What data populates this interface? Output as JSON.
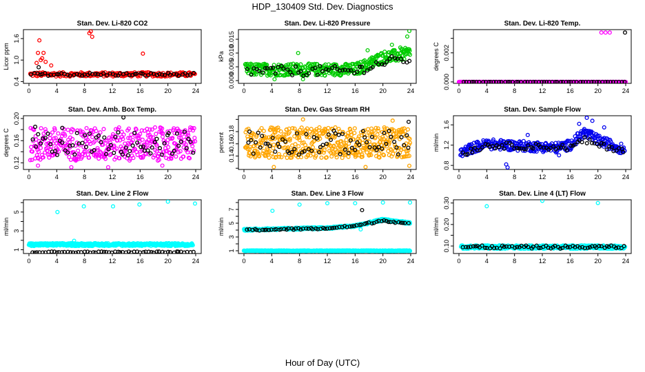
{
  "figure": {
    "title": "HDP_130409  Std. Dev. Diagnostics",
    "xlabel": "Hour of Day (UTC)"
  },
  "chart_data": [
    {
      "type": "scatter",
      "title": "Stan. Dev. Li-820 CO2",
      "xlabel": "",
      "ylabel": "Licor ppm",
      "xlim": [
        0,
        24
      ],
      "ylim": [
        0.35,
        1.85
      ],
      "xticks": [
        "0",
        "4",
        "8",
        "12",
        "16",
        "20",
        "24"
      ],
      "yticks": [
        0.4,
        1.0,
        1.6
      ],
      "yticks_labels": [
        "0.4",
        "1.0",
        "1.6"
      ],
      "extra_ytick_labels": [
        "0.8"
      ],
      "series": [
        {
          "color": "#ff0000",
          "base": 0.6,
          "spread": 0.06,
          "from": 0.2,
          "to": 23.9,
          "step": 0.1,
          "outliers": [
            [
              1.5,
              1.55
            ],
            [
              1.3,
              1.2
            ],
            [
              1.9,
              1.05
            ],
            [
              2.1,
              1.2
            ],
            [
              1.7,
              1.0
            ],
            [
              2.4,
              0.95
            ],
            [
              8.7,
              1.75
            ],
            [
              8.9,
              1.8
            ],
            [
              9.1,
              1.65
            ],
            [
              16.4,
              1.18
            ],
            [
              1.1,
              0.92
            ],
            [
              3.2,
              0.85
            ]
          ]
        },
        {
          "color": "#000000",
          "base": 0.6,
          "spread": 0.04,
          "from": 0.4,
          "to": 23.8,
          "step": 0.4,
          "outliers": [
            [
              1.4,
              0.8
            ]
          ]
        }
      ]
    },
    {
      "type": "scatter",
      "title": "Stan. Dev. Li-820 Pressure",
      "xlabel": "",
      "ylabel": "kPa",
      "xlim": [
        0,
        24
      ],
      "ylim": [
        -0.001,
        0.0185
      ],
      "xticks": [
        "0",
        "4",
        "8",
        "12",
        "16",
        "20",
        "24"
      ],
      "yticks": [
        0.0,
        0.005,
        0.01,
        0.015
      ],
      "yticks_labels": [
        "0.000",
        "0.005",
        "0.010",
        "0.015"
      ],
      "series": [
        {
          "color": "#00cc00",
          "base": 0.004,
          "spread": 0.0022,
          "from": 0.2,
          "to": 23.9,
          "step": 0.06,
          "trend": [
            [
              16,
              0.004
            ],
            [
              18,
              0.006
            ],
            [
              20,
              0.0085
            ],
            [
              22,
              0.009
            ],
            [
              24,
              0.01
            ]
          ],
          "outliers": [
            [
              7.8,
              0.01
            ],
            [
              17.8,
              0.011
            ],
            [
              23.8,
              0.018
            ],
            [
              23.5,
              0.016
            ],
            [
              22.5,
              0.012
            ],
            [
              21.3,
              0.013
            ],
            [
              8.5,
              0.0005
            ],
            [
              4.4,
              0.0005
            ]
          ]
        },
        {
          "color": "#000000",
          "base": 0.0035,
          "spread": 0.0018,
          "from": 0.6,
          "to": 23.8,
          "step": 0.4,
          "trend": [
            [
              16,
              0.0035
            ],
            [
              20,
              0.0065
            ],
            [
              24,
              0.008
            ]
          ],
          "outliers": []
        }
      ]
    },
    {
      "type": "scatter",
      "title": "Stan. Dev. Li-820 Temp.",
      "xlabel": "",
      "ylabel": "degrees C",
      "xlim": [
        0,
        24
      ],
      "ylim": [
        -0.0001,
        0.0036
      ],
      "xticks": [
        "0",
        "4",
        "8",
        "12",
        "16",
        "20",
        "24"
      ],
      "yticks": [
        0.0,
        0.001,
        0.002,
        0.003
      ],
      "yticks_labels": [
        "0.000",
        "",
        "0.002",
        ""
      ],
      "series": [
        {
          "color": "#ff00ff",
          "base": 0.0,
          "spread": 0.0,
          "from": 0.0,
          "to": 24.0,
          "step": 0.04,
          "outliers": [
            [
              20.5,
              0.0034
            ],
            [
              21.1,
              0.0034
            ],
            [
              21.7,
              0.0034
            ]
          ]
        },
        {
          "color": "#000000",
          "base": 0.0,
          "spread": 0.0,
          "from": 0.6,
          "to": 23.8,
          "step": 0.4,
          "outliers": [
            [
              23.9,
              0.0034
            ]
          ]
        }
      ]
    },
    {
      "type": "scatter",
      "title": "Stan. Dev. Amb. Box Temp.",
      "xlabel": "",
      "ylabel": "degrees C",
      "xlim": [
        0,
        24
      ],
      "ylim": [
        0.108,
        0.205
      ],
      "xticks": [
        "0",
        "4",
        "8",
        "12",
        "16",
        "20",
        "24"
      ],
      "yticks": [
        0.12,
        0.14,
        0.16,
        0.18,
        0.2
      ],
      "yticks_labels": [
        "0.12",
        "",
        "0.16",
        "",
        "0.20"
      ],
      "series": [
        {
          "color": "#ff00ff",
          "base": 0.154,
          "spread": 0.03,
          "from": 0.2,
          "to": 23.9,
          "step": 0.06,
          "outliers": [
            [
              1.3,
              0.115
            ],
            [
              6.1,
              0.112
            ],
            [
              19.2,
              0.115
            ],
            [
              11.4,
              0.112
            ]
          ]
        },
        {
          "color": "#000000",
          "base": 0.155,
          "spread": 0.022,
          "from": 0.6,
          "to": 23.8,
          "step": 0.35,
          "outliers": [
            [
              13.6,
              0.202
            ],
            [
              0.9,
              0.185
            ],
            [
              4.8,
              0.183
            ]
          ]
        }
      ]
    },
    {
      "type": "scatter",
      "title": "Stan. Dev. Gas Stream RH",
      "xlabel": "",
      "ylabel": "percent",
      "xlim": [
        0,
        24
      ],
      "ylim": [
        0.118,
        0.206
      ],
      "xticks": [
        "0",
        "4",
        "8",
        "12",
        "16",
        "20",
        "24"
      ],
      "yticks": [
        0.12,
        0.14,
        0.16,
        0.18,
        0.2
      ],
      "yticks_labels": [
        "",
        "0.14",
        "0.16",
        "0.18",
        ""
      ],
      "series": [
        {
          "color": "#ffa500",
          "base": 0.162,
          "spread": 0.025,
          "from": 0.2,
          "to": 23.9,
          "step": 0.05,
          "outliers": [
            [
              4.3,
              0.122
            ],
            [
              8.5,
              0.2
            ],
            [
              21.4,
              0.198
            ],
            [
              23.8,
              0.124
            ],
            [
              17.5,
              0.122
            ]
          ]
        },
        {
          "color": "#000000",
          "base": 0.162,
          "spread": 0.02,
          "from": 0.6,
          "to": 23.8,
          "step": 0.35,
          "outliers": [
            [
              23.7,
              0.196
            ],
            [
              0.8,
              0.18
            ]
          ]
        }
      ]
    },
    {
      "type": "scatter",
      "title": "Stan. Dev. Sample Flow",
      "xlabel": "",
      "ylabel": "ml/min",
      "xlim": [
        0,
        24
      ],
      "ylim": [
        0.72,
        1.78
      ],
      "xticks": [
        "0",
        "4",
        "8",
        "12",
        "16",
        "20",
        "24"
      ],
      "yticks": [
        0.8,
        1.2,
        1.6
      ],
      "yticks_labels": [
        "0.8",
        "1.2",
        "1.6"
      ],
      "extra_ytick_labels": [
        "1.0",
        "1.4"
      ],
      "series": [
        {
          "color": "#0000ee",
          "base": 1.15,
          "spread": 0.1,
          "from": 0.2,
          "to": 23.9,
          "step": 0.07,
          "trend": [
            [
              0,
              1.02
            ],
            [
              2,
              1.15
            ],
            [
              4,
              1.22
            ],
            [
              14,
              1.15
            ],
            [
              16,
              1.2
            ],
            [
              18,
              1.45
            ],
            [
              20,
              1.3
            ],
            [
              24,
              1.1
            ]
          ],
          "outliers": [
            [
              6.8,
              0.82
            ],
            [
              7.0,
              0.76
            ],
            [
              18.4,
              1.74
            ],
            [
              17.3,
              1.62
            ],
            [
              19.2,
              1.68
            ],
            [
              20.9,
              1.55
            ],
            [
              9.9,
              1.4
            ],
            [
              14.4,
              1.0
            ]
          ]
        },
        {
          "color": "#000000",
          "base": 1.15,
          "spread": 0.06,
          "from": 0.6,
          "to": 23.8,
          "step": 0.35,
          "trend": [
            [
              0,
              1.02
            ],
            [
              4,
              1.2
            ],
            [
              16,
              1.15
            ],
            [
              18,
              1.3
            ],
            [
              20,
              1.2
            ],
            [
              24,
              1.1
            ]
          ],
          "outliers": []
        }
      ]
    },
    {
      "type": "scatter",
      "title": "Stan. Dev. Line 2 Flow",
      "xlabel": "",
      "ylabel": "ml/min",
      "xlim": [
        0,
        24
      ],
      "ylim": [
        0.6,
        6.3
      ],
      "xticks": [
        "0",
        "4",
        "8",
        "12",
        "16",
        "20",
        "24"
      ],
      "yticks": [
        1,
        2,
        3,
        4,
        5,
        6
      ],
      "yticks_labels": [
        "1",
        "",
        "3",
        "",
        "5",
        ""
      ],
      "series": [
        {
          "color": "#00ffff",
          "base": 1.55,
          "spread": 0.15,
          "from": 0.0,
          "to": 23.6,
          "step": 0.05,
          "outliers": [
            [
              4.1,
              5.0
            ],
            [
              7.9,
              5.6
            ],
            [
              12.1,
              5.6
            ],
            [
              15.9,
              5.8
            ],
            [
              20.0,
              6.1
            ],
            [
              23.9,
              5.9
            ],
            [
              6.5,
              1.95
            ]
          ]
        },
        {
          "color": "#000000",
          "base": 0.75,
          "spread": 0.06,
          "from": 0.4,
          "to": 23.8,
          "step": 0.4,
          "outliers": []
        }
      ]
    },
    {
      "type": "scatter",
      "title": "Stan. Dev. Line 3 Flow",
      "xlabel": "",
      "ylabel": "ml/min",
      "xlim": [
        0,
        24
      ],
      "ylim": [
        0.6,
        8.4
      ],
      "xticks": [
        "0",
        "4",
        "8",
        "12",
        "16",
        "20",
        "24"
      ],
      "yticks": [
        1,
        2,
        3,
        4,
        5,
        6,
        7,
        8
      ],
      "yticks_labels": [
        "1",
        "",
        "3",
        "",
        "5",
        "",
        "7",
        ""
      ],
      "series": [
        {
          "color": "#00ffff",
          "base": 4.1,
          "spread": 0.15,
          "from": 0.0,
          "to": 23.9,
          "step": 0.05,
          "trend": [
            [
              0,
              4.05
            ],
            [
              12,
              4.3
            ],
            [
              16,
              4.6
            ],
            [
              20,
              5.5
            ],
            [
              24,
              5.0
            ]
          ],
          "outliers": [
            [
              4.1,
              6.8
            ],
            [
              8.0,
              7.7
            ],
            [
              12.0,
              7.9
            ],
            [
              16.0,
              7.9
            ],
            [
              20.0,
              8.0
            ],
            [
              23.9,
              8.0
            ],
            [
              16.8,
              4.1
            ]
          ]
        },
        {
          "color": "#00ffff",
          "base": 1.0,
          "spread": 0.05,
          "from": 0.0,
          "to": 23.9,
          "step": 0.05,
          "outliers": []
        },
        {
          "color": "#000000",
          "base": 4.1,
          "spread": 0.12,
          "from": 0.5,
          "to": 23.8,
          "step": 0.35,
          "trend": [
            [
              0,
              4.0
            ],
            [
              12,
              4.25
            ],
            [
              16,
              4.6
            ],
            [
              20,
              5.4
            ],
            [
              24,
              4.9
            ]
          ],
          "outliers": [
            [
              17.0,
              6.9
            ]
          ]
        }
      ]
    },
    {
      "type": "scatter",
      "title": "Stan. Dev. Line 4 (LT) Flow",
      "xlabel": "",
      "ylabel": "ml/min",
      "xlim": [
        0,
        24
      ],
      "ylim": [
        0.065,
        0.315
      ],
      "xticks": [
        "0",
        "4",
        "8",
        "12",
        "16",
        "20",
        "24"
      ],
      "yticks": [
        0.1,
        0.15,
        0.2,
        0.25,
        0.3
      ],
      "yticks_labels": [
        "0.10",
        "",
        "0.20",
        "",
        "0.30"
      ],
      "series": [
        {
          "color": "#00ffff",
          "base": 0.095,
          "spread": 0.008,
          "from": 0.3,
          "to": 23.9,
          "step": 0.05,
          "outliers": [
            [
              4.0,
              0.285
            ],
            [
              12.0,
              0.31
            ],
            [
              20.0,
              0.3
            ]
          ]
        },
        {
          "color": "#000000",
          "base": 0.095,
          "spread": 0.007,
          "from": 0.6,
          "to": 23.8,
          "step": 0.35,
          "outliers": []
        }
      ]
    }
  ]
}
